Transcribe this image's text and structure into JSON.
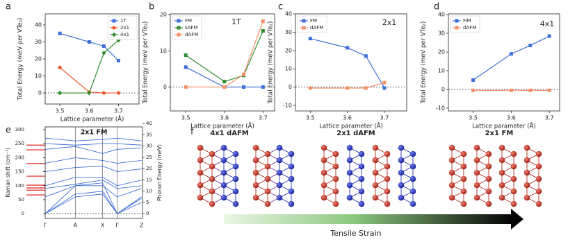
{
  "chart_data": [
    {
      "type": "line",
      "panel": "a",
      "xlabel": "Lattice parameter (Å)",
      "ylabel": "Total Energy (meV per VTe₂)",
      "x": [
        3.5,
        3.6,
        3.65,
        3.7
      ],
      "xlim": [
        3.45,
        3.77
      ],
      "xticks": [
        3.5,
        3.6,
        3.7
      ],
      "ylim": [
        -6.5,
        46.5
      ],
      "yticks": [
        0,
        10,
        20,
        30,
        40
      ],
      "legend": "upper right",
      "zero_line": true,
      "series": [
        {
          "name": "1T",
          "color": "#3d6fd8",
          "marker": "square",
          "values": [
            35,
            30,
            27.5,
            19
          ]
        },
        {
          "name": "2x1",
          "color": "#f05a28",
          "marker": "circle",
          "values": [
            15,
            0.5,
            0,
            0
          ]
        },
        {
          "name": "4x1",
          "color": "#2e8b2e",
          "marker": "diamond",
          "values": [
            0,
            0,
            23.5,
            31
          ]
        }
      ]
    },
    {
      "type": "line",
      "panel": "b",
      "annotation": "1T",
      "xlabel": "Lattice parameter (Å)",
      "ylabel": "Total Energy (meV per VTe₂)",
      "x": [
        3.5,
        3.6,
        3.65,
        3.7
      ],
      "xlim": [
        3.46,
        3.73
      ],
      "xticks": [
        3.5,
        3.6,
        3.7
      ],
      "ylim": [
        -6.6,
        20.2
      ],
      "yticks": [
        0,
        10,
        20
      ],
      "legend": "upper left",
      "zero_line": true,
      "series": [
        {
          "name": "FM",
          "color": "#3d6fd8",
          "marker": "square",
          "values": [
            5.5,
            0,
            0,
            0
          ]
        },
        {
          "name": "sAFM",
          "color": "#2e8b2e",
          "marker": "square",
          "values": [
            8.8,
            1.5,
            3.2,
            15.5
          ]
        },
        {
          "name": "dAFM",
          "color": "#f4906a",
          "marker": "square",
          "values": [
            0,
            0,
            3.5,
            18.2
          ]
        }
      ]
    },
    {
      "type": "line",
      "panel": "c",
      "annotation": "2x1",
      "xlabel": "Lattice parameter (Å)",
      "ylabel": "Total Energy (meV per VTe₂)",
      "x": [
        3.5,
        3.6,
        3.65,
        3.7
      ],
      "xlim": [
        3.46,
        3.76
      ],
      "xticks": [
        3.5,
        3.6,
        3.7
      ],
      "ylim": [
        -13,
        40
      ],
      "yticks": [
        -10,
        0,
        10,
        20,
        30,
        40
      ],
      "legend": "upper left",
      "zero_line": true,
      "series": [
        {
          "name": "FM",
          "color": "#3d6fd8",
          "marker": "square",
          "values": [
            26.5,
            21.5,
            17,
            -0.5
          ]
        },
        {
          "name": "dAFM",
          "color": "#f4906a",
          "marker": "square",
          "values": [
            -0.5,
            -0.5,
            -0.5,
            2.5
          ]
        }
      ]
    },
    {
      "type": "line",
      "panel": "d",
      "annotation": "4x1",
      "xlabel": "Lattice parameter (Å)",
      "ylabel": "Total Energy (meV per VTe₂)",
      "x": [
        3.5,
        3.6,
        3.65,
        3.7
      ],
      "xlim": [
        3.435,
        3.727
      ],
      "xticks": [
        3.5,
        3.6,
        3.7
      ],
      "ylim": [
        -11.5,
        40.4
      ],
      "yticks": [
        -10,
        0,
        10,
        20,
        30,
        40
      ],
      "legend": "upper left",
      "zero_line": true,
      "series": [
        {
          "name": "FiM",
          "color": "#3d6fd8",
          "marker": "square",
          "values": [
            5,
            19,
            23.5,
            28.5
          ]
        },
        {
          "name": "dAFM",
          "color": "#f4906a",
          "marker": "square",
          "values": [
            -0.5,
            -0.5,
            -0.5,
            -0.5
          ]
        }
      ]
    },
    {
      "type": "band",
      "panel": "e",
      "title": "2x1 FM",
      "ylabel": "Raman shift (cm⁻¹)",
      "y2label": "Phonon Energy (meV)",
      "categories": [
        "Γ",
        "A",
        "X",
        "Γ",
        "Z"
      ],
      "ylim": [
        -17,
        310
      ],
      "yticks": [
        0,
        50,
        100,
        150,
        200,
        250,
        300
      ],
      "y2lim": [
        -2.1,
        38.5
      ],
      "y2ticks": [
        0,
        5,
        10,
        15,
        20,
        25,
        30,
        35,
        40
      ],
      "zero_line": true,
      "band_color": "#3d6fd8",
      "bands": [
        [
          0,
          60,
          70,
          0,
          40
        ],
        [
          0,
          70,
          80,
          0,
          55
        ],
        [
          0,
          100,
          110,
          0,
          60
        ],
        [
          60,
          100,
          100,
          60,
          90
        ],
        [
          90,
          105,
          120,
          90,
          100
        ],
        [
          100,
          130,
          130,
          100,
          120
        ],
        [
          150,
          165,
          170,
          150,
          160
        ],
        [
          180,
          200,
          190,
          180,
          190
        ],
        [
          230,
          240,
          215,
          230,
          235
        ],
        [
          250,
          245,
          250,
          250,
          245
        ],
        [
          270,
          260,
          265,
          270,
          260
        ]
      ],
      "raman": {
        "color": "#e02020",
        "values": [
          245,
          228,
          179,
          134,
          102,
          92,
          84,
          67
        ]
      }
    }
  ],
  "diagram": {
    "panel": "f",
    "titles": [
      "4x1 dAFM",
      "2x1 dAFM",
      "2x1 FM"
    ],
    "arrow_label": "Tensile Strain"
  }
}
